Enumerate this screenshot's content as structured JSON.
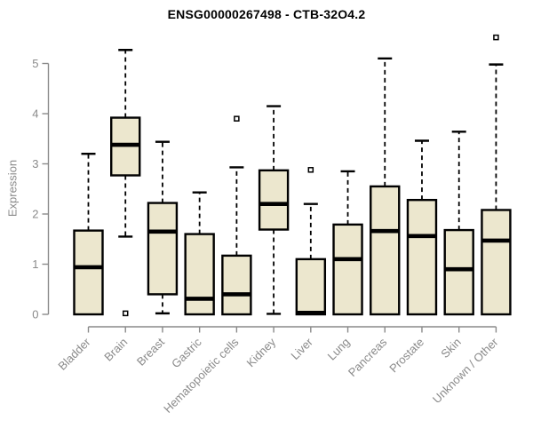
{
  "chart_data": {
    "type": "boxplot",
    "title": "ENSG00000267498 - CTB-32O4.2",
    "ylabel": "Expression",
    "xlabel": "",
    "ylim": [
      0,
      5.6
    ],
    "yticks": [
      0,
      1,
      2,
      3,
      4,
      5
    ],
    "grid": false,
    "legend": null,
    "categories": [
      "Bladder",
      "Brain",
      "Breast",
      "Gastric",
      "Hematopoietic cells",
      "Kidney",
      "Liver",
      "Lung",
      "Pancreas",
      "Prostate",
      "Skin",
      "Unknown / Other"
    ],
    "boxes": [
      {
        "category": "Bladder",
        "whisker_low": 0,
        "q1": 0,
        "median": 0.94,
        "q3": 1.67,
        "whisker_high": 3.2,
        "outliers": []
      },
      {
        "category": "Brain",
        "whisker_low": 1.55,
        "q1": 2.77,
        "median": 3.38,
        "q3": 3.92,
        "whisker_high": 5.27,
        "outliers": [
          0.02
        ]
      },
      {
        "category": "Breast",
        "whisker_low": 0.02,
        "q1": 0.4,
        "median": 1.65,
        "q3": 2.22,
        "whisker_high": 3.44,
        "outliers": []
      },
      {
        "category": "Gastric",
        "whisker_low": 0,
        "q1": 0,
        "median": 0.31,
        "q3": 1.6,
        "whisker_high": 2.43,
        "outliers": []
      },
      {
        "category": "Hematopoietic cells",
        "whisker_low": 0,
        "q1": 0,
        "median": 0.4,
        "q3": 1.17,
        "whisker_high": 2.93,
        "outliers": [
          3.9
        ]
      },
      {
        "category": "Kidney",
        "whisker_low": 0.01,
        "q1": 1.69,
        "median": 2.2,
        "q3": 2.87,
        "whisker_high": 4.15,
        "outliers": []
      },
      {
        "category": "Liver",
        "whisker_low": 0,
        "q1": 0,
        "median": 0.03,
        "q3": 1.1,
        "whisker_high": 2.2,
        "outliers": [
          2.88
        ]
      },
      {
        "category": "Lung",
        "whisker_low": 0,
        "q1": 0,
        "median": 1.1,
        "q3": 1.79,
        "whisker_high": 2.85,
        "outliers": []
      },
      {
        "category": "Pancreas",
        "whisker_low": 0,
        "q1": 0,
        "median": 1.66,
        "q3": 2.55,
        "whisker_high": 5.1,
        "outliers": []
      },
      {
        "category": "Prostate",
        "whisker_low": 0,
        "q1": 0,
        "median": 1.56,
        "q3": 2.28,
        "whisker_high": 3.46,
        "outliers": []
      },
      {
        "category": "Skin",
        "whisker_low": 0,
        "q1": 0,
        "median": 0.9,
        "q3": 1.68,
        "whisker_high": 3.64,
        "outliers": []
      },
      {
        "category": "Unknown / Other",
        "whisker_low": 0,
        "q1": 0,
        "median": 1.47,
        "q3": 2.08,
        "whisker_high": 4.98,
        "outliers": [
          5.52
        ]
      }
    ],
    "colors": {
      "box_fill": "#ECE7CE",
      "box_border": "#000000",
      "median": "#000000",
      "whisker": "#000000",
      "outlier_fill": "#ffffff",
      "outlier_border": "#000000",
      "axis": "#8a8a8a",
      "tick_text": "#8a8a8a",
      "title_text": "#000000"
    }
  }
}
